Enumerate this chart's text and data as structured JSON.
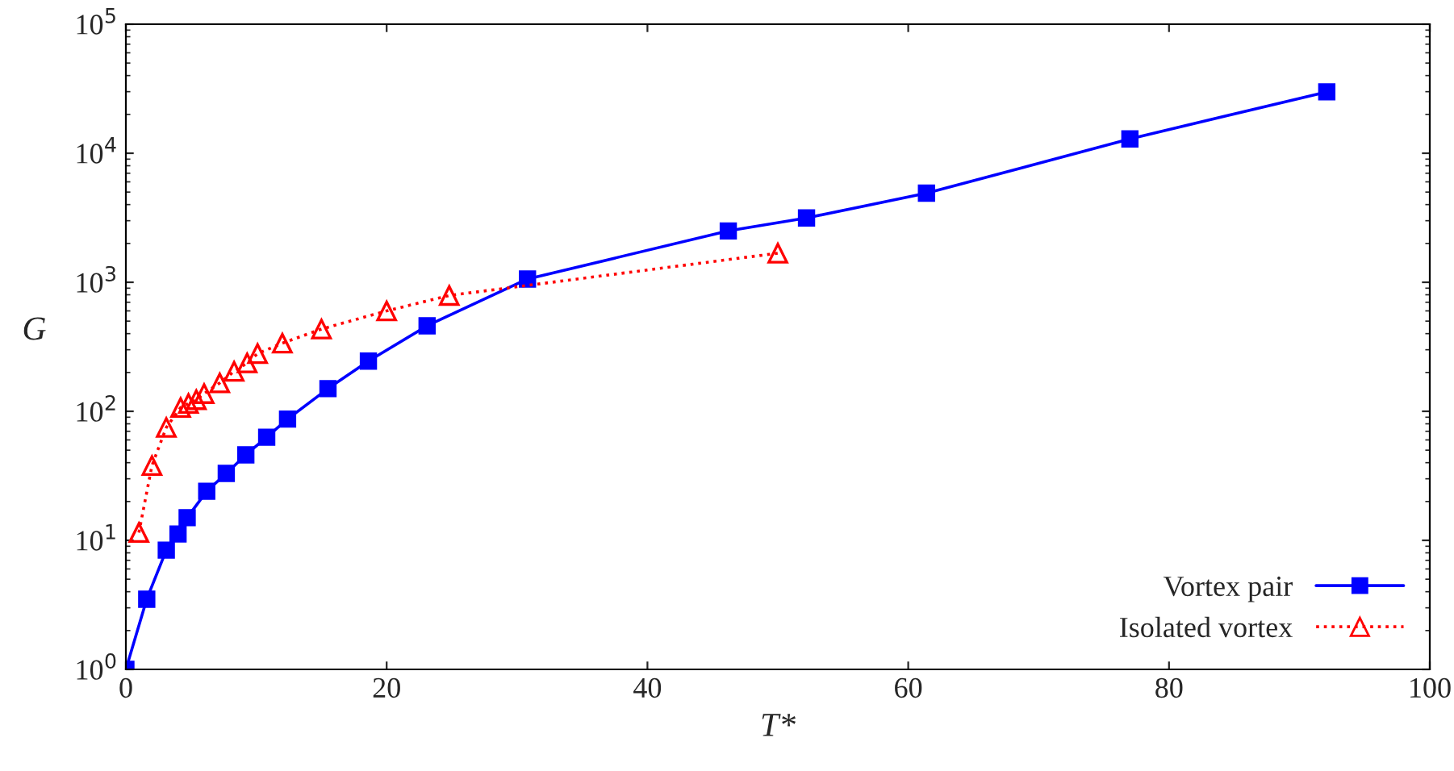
{
  "chart_data": {
    "type": "line",
    "xlabel": "T*",
    "ylabel": "G",
    "log": "y",
    "grid": false,
    "legend": "bottom right",
    "xlim": [
      0,
      100
    ],
    "xticks": [
      0,
      20,
      40,
      60,
      80,
      100
    ],
    "ylim": [
      1,
      100000
    ],
    "yticks": [
      {
        "value": 1,
        "label": "10$^{0}$"
      },
      {
        "value": 10,
        "label": "10$^{1}$"
      },
      {
        "value": 100,
        "label": "10$^{2}$"
      },
      {
        "value": 1000,
        "label": "10$^{3}$"
      },
      {
        "value": 10000,
        "label": "10$^{4}$"
      },
      {
        "value": 100000,
        "label": "10$^{5}$"
      }
    ],
    "series": [
      {
        "name": "Vortex pair",
        "color": "#0000ff",
        "marker": "square",
        "line_style": "solid",
        "x": [
          0,
          1.6,
          3.1,
          4.0,
          4.7,
          6.2,
          7.7,
          9.2,
          10.8,
          12.4,
          15.5,
          18.6,
          23.1,
          30.8,
          46.2,
          52.2,
          61.4,
          77,
          92.1
        ],
        "values": [
          1,
          3.5,
          8.4,
          11.2,
          15,
          24,
          33,
          46,
          63,
          87,
          150,
          245,
          460,
          1060,
          2500,
          3150,
          4900,
          12900,
          29900
        ]
      },
      {
        "name": "Isolated vortex",
        "color": "#ff0000",
        "marker": "triangle",
        "line_style": "dotted",
        "x": [
          1,
          2,
          3.1,
          4.2,
          4.8,
          5.4,
          6.0,
          7.2,
          8.3,
          9.3,
          10.1,
          12,
          15,
          20,
          24.8,
          50
        ],
        "values": [
          11.5,
          38,
          75,
          107,
          115,
          123,
          137,
          166,
          204,
          237,
          280,
          337,
          434,
          600,
          790,
          1680
        ]
      }
    ]
  }
}
